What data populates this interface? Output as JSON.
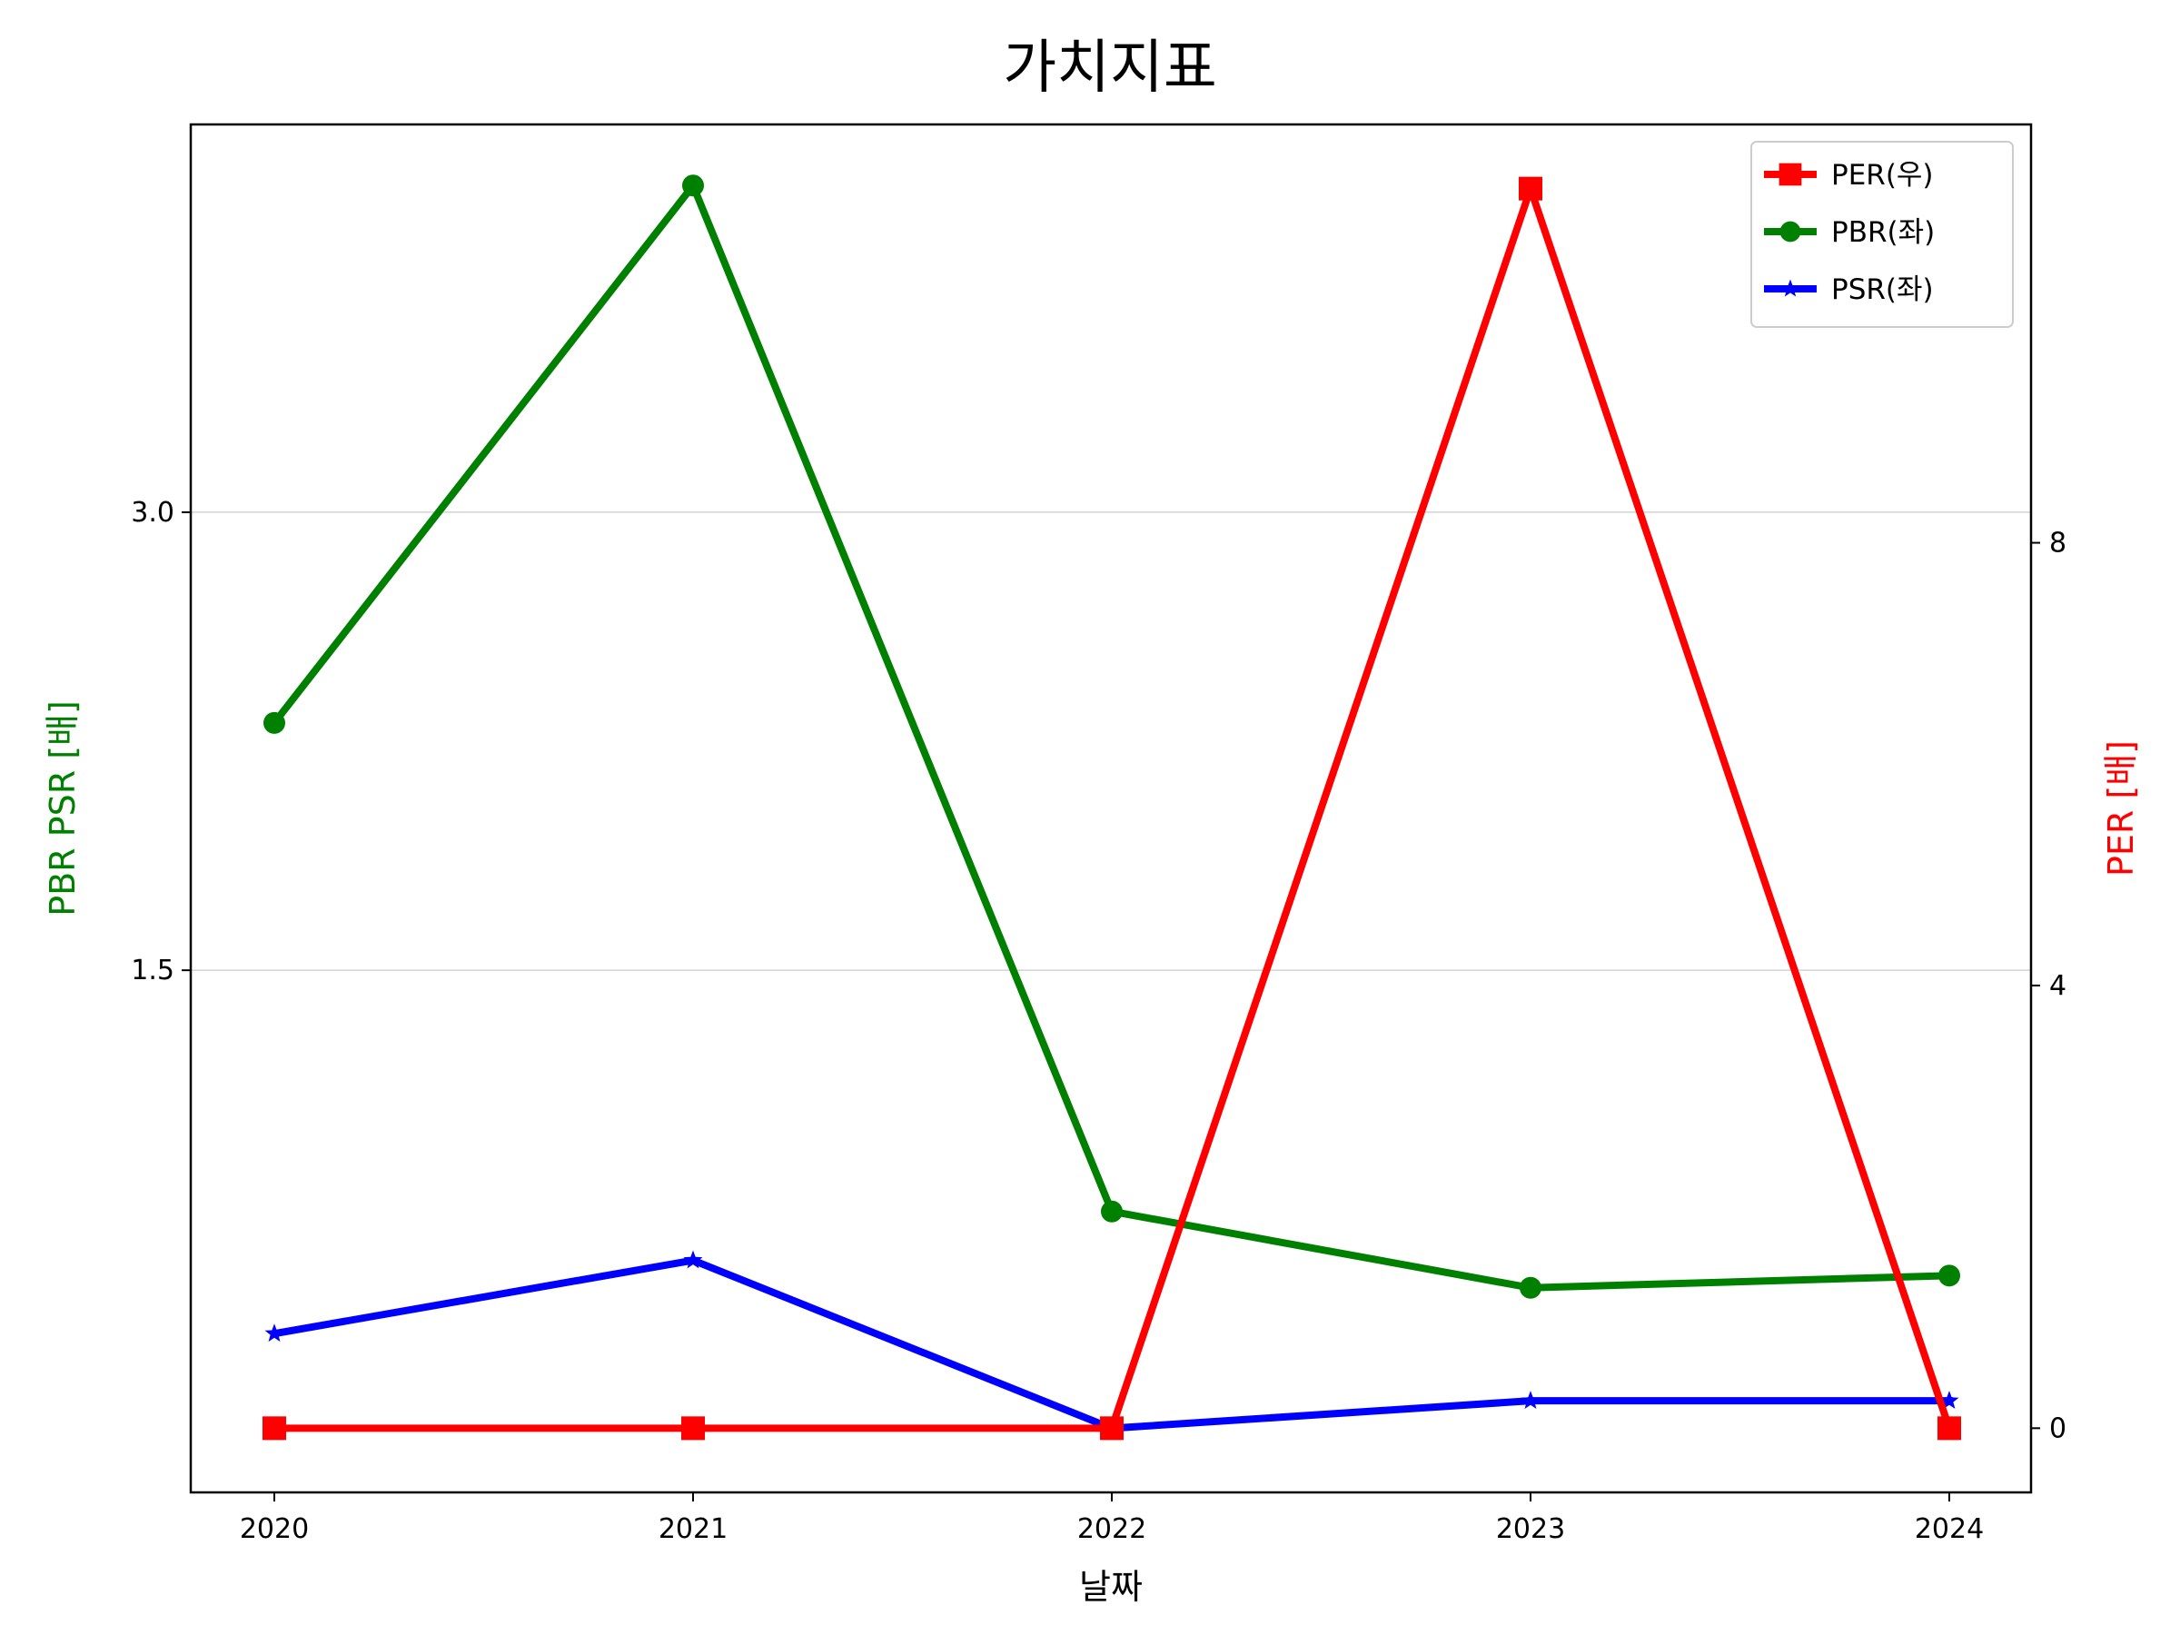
{
  "chart_data": {
    "type": "line",
    "title": "가치지표",
    "xlabel": "날짜",
    "ylabel_left": "PBR PSR [배]",
    "ylabel_right": "PER [배]",
    "categories": [
      "2020",
      "2021",
      "2022",
      "2023",
      "2024"
    ],
    "left_axis": {
      "ylim": [
        -0.21,
        4.27
      ],
      "ticks": [
        1.5,
        3.0
      ],
      "tick_labels": [
        "1.5",
        "3.0"
      ],
      "grid": true
    },
    "right_axis": {
      "ylim": [
        -0.58,
        11.78
      ],
      "ticks": [
        0,
        4,
        8
      ],
      "tick_labels": [
        "0",
        "4",
        "8"
      ]
    },
    "series": [
      {
        "name": "PER(우)",
        "axis": "right",
        "color": "#ff0000",
        "marker": "square",
        "values": [
          0,
          0,
          0,
          11.2,
          0
        ]
      },
      {
        "name": "PBR(좌)",
        "axis": "left",
        "color": "#008000",
        "marker": "circle",
        "values": [
          2.31,
          4.07,
          0.71,
          0.46,
          0.5
        ]
      },
      {
        "name": "PSR(좌)",
        "axis": "left",
        "color": "#0000ff",
        "marker": "star",
        "values": [
          0.31,
          0.55,
          0.0,
          0.09,
          0.09
        ]
      }
    ],
    "legend_position": "top-right"
  }
}
